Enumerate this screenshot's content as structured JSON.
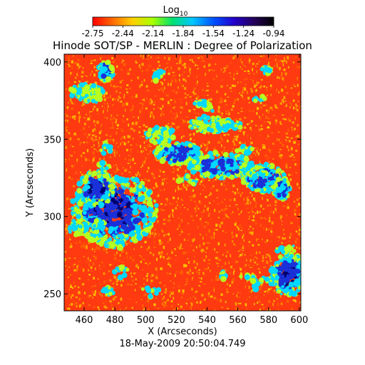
{
  "chart_data": {
    "type": "heatmap",
    "title": "Hinode SOT/SP - MERLIN : Degree of Polarization",
    "subtitle": "18-May-2009 20:50:04.749",
    "xlabel": "X (Arcseconds)",
    "ylabel": "Y (Arcseconds)",
    "xlim": [
      447,
      601
    ],
    "ylim": [
      239,
      405
    ],
    "x_ticks": [
      460,
      480,
      500,
      520,
      540,
      560,
      580,
      600
    ],
    "y_ticks": [
      250,
      300,
      350,
      400
    ],
    "colorbar": {
      "label_base": "Log",
      "label_sub": "10",
      "min": -2.75,
      "max": -0.94,
      "ticks": [
        "-2.75",
        "-2.44",
        "-2.14",
        "-1.84",
        "-1.54",
        "-1.24",
        "-0.94"
      ],
      "colors": [
        "#ff0000",
        "#ff6a00",
        "#ffd000",
        "#aaff00",
        "#00e070",
        "#00c8ff",
        "#0050ff",
        "#2200cc",
        "#24005a",
        "#000000"
      ]
    },
    "field_colors": {
      "background": "#ff3a10",
      "speckle": [
        "#ff6a00",
        "#ffa800",
        "#ffd000"
      ],
      "medium": "#b6ff20",
      "strong": "#00d8ff",
      "very_strong": "#1a30d8",
      "strongest": "#000070"
    }
  }
}
